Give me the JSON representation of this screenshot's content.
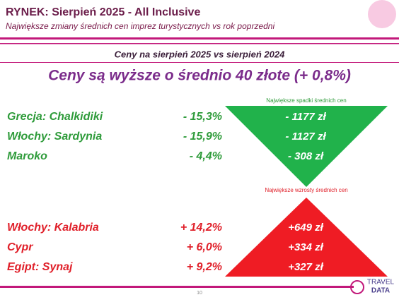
{
  "header": {
    "title": "RYNEK: Sierpień 2025 - All Inclusive",
    "subtitle": "Największe zmiany średnich cen imprez turystycznych vs rok poprzedni"
  },
  "comparison": "Ceny na sierpień 2025 vs sierpień 2024",
  "headline": "Ceny są wyższe o średnio 40 złote (+ 0,8%)",
  "decreases": {
    "label": "Największe spadki średnich cen",
    "rows": [
      [
        "Grecja: Chalkidiki",
        "- 15,3%",
        "- 1177 zł"
      ],
      [
        "Włochy: Sardynia",
        "- 15,9%",
        "- 1127 zł"
      ],
      [
        "Maroko",
        "- 4,4%",
        "- 308 zł"
      ]
    ]
  },
  "increases": {
    "label": "Największe wzrosty średnich cen",
    "rows": [
      [
        "Włochy: Kalabria",
        "+ 14,2%",
        "+649 zł"
      ],
      [
        "Cypr",
        "+ 6,0%",
        "+334 zł"
      ],
      [
        "Egipt: Synaj",
        "+ 9,2%",
        "+327 zł"
      ]
    ]
  },
  "footer": {
    "page": "10",
    "logo_top": "TRAVEL",
    "logo_bottom": "DATA"
  }
}
